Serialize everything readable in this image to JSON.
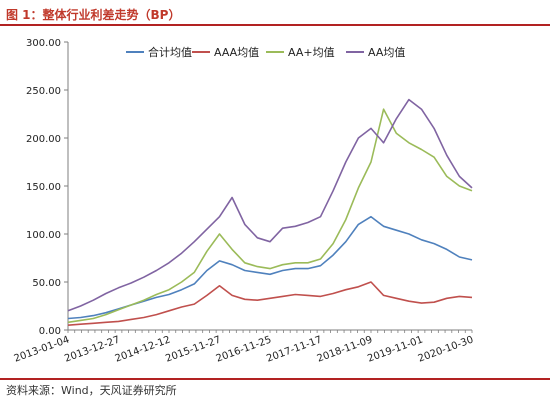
{
  "figure": {
    "title": "图 1：整体行业利差走势（BP）",
    "source": "资料来源：Wind，天风证券研究所"
  },
  "colors": {
    "hj": "#4f81bd",
    "aaa": "#c0504d",
    "aaplus": "#9bbb59",
    "aa": "#8064a2",
    "accent_rule": "#b22222"
  },
  "chart_data": {
    "type": "line",
    "title": "",
    "xlabel": "",
    "ylabel": "",
    "ylim": [
      0,
      300
    ],
    "yticks": [
      "0.00",
      "50.00",
      "100.00",
      "150.00",
      "200.00",
      "250.00",
      "300.00"
    ],
    "grid": false,
    "legend": "top",
    "x_tick_labels": [
      "2013-01-04",
      "2013-12-27",
      "2014-12-12",
      "2015-11-27",
      "2016-11-25",
      "2017-11-17",
      "2018-11-09",
      "2019-11-01",
      "2020-10-30"
    ],
    "x": [
      "2013-01",
      "2013-04",
      "2013-07",
      "2013-10",
      "2014-01",
      "2014-04",
      "2014-07",
      "2014-10",
      "2015-01",
      "2015-04",
      "2015-07",
      "2015-10",
      "2016-01",
      "2016-04",
      "2016-07",
      "2016-10",
      "2017-01",
      "2017-04",
      "2017-07",
      "2017-10",
      "2018-01",
      "2018-04",
      "2018-07",
      "2018-10",
      "2019-01",
      "2019-04",
      "2019-07",
      "2019-10",
      "2020-01",
      "2020-04",
      "2020-07",
      "2020-10",
      "2020-12"
    ],
    "series": [
      {
        "name": "合计均值",
        "color_key": "hj",
        "values": [
          12,
          13,
          15,
          18,
          22,
          26,
          30,
          34,
          37,
          42,
          48,
          62,
          72,
          68,
          62,
          60,
          58,
          62,
          64,
          64,
          67,
          78,
          92,
          110,
          118,
          108,
          104,
          100,
          94,
          90,
          84,
          76,
          73
        ]
      },
      {
        "name": "AAA均值",
        "color_key": "aaa",
        "values": [
          5,
          6,
          7,
          8,
          9,
          11,
          13,
          16,
          20,
          24,
          27,
          36,
          46,
          36,
          32,
          31,
          33,
          35,
          37,
          36,
          35,
          38,
          42,
          45,
          50,
          36,
          33,
          30,
          28,
          29,
          33,
          35,
          34
        ]
      },
      {
        "name": "AA+均值",
        "color_key": "aaplus",
        "values": [
          8,
          10,
          12,
          16,
          21,
          26,
          31,
          37,
          42,
          50,
          60,
          82,
          100,
          84,
          70,
          66,
          64,
          68,
          70,
          70,
          74,
          90,
          115,
          148,
          175,
          230,
          205,
          195,
          188,
          180,
          160,
          150,
          145
        ]
      },
      {
        "name": "AA均值",
        "color_key": "aa",
        "values": [
          20,
          25,
          31,
          38,
          44,
          49,
          55,
          62,
          70,
          80,
          92,
          105,
          118,
          138,
          110,
          96,
          92,
          106,
          108,
          112,
          118,
          145,
          175,
          200,
          210,
          195,
          220,
          240,
          230,
          210,
          182,
          160,
          148
        ]
      }
    ]
  }
}
